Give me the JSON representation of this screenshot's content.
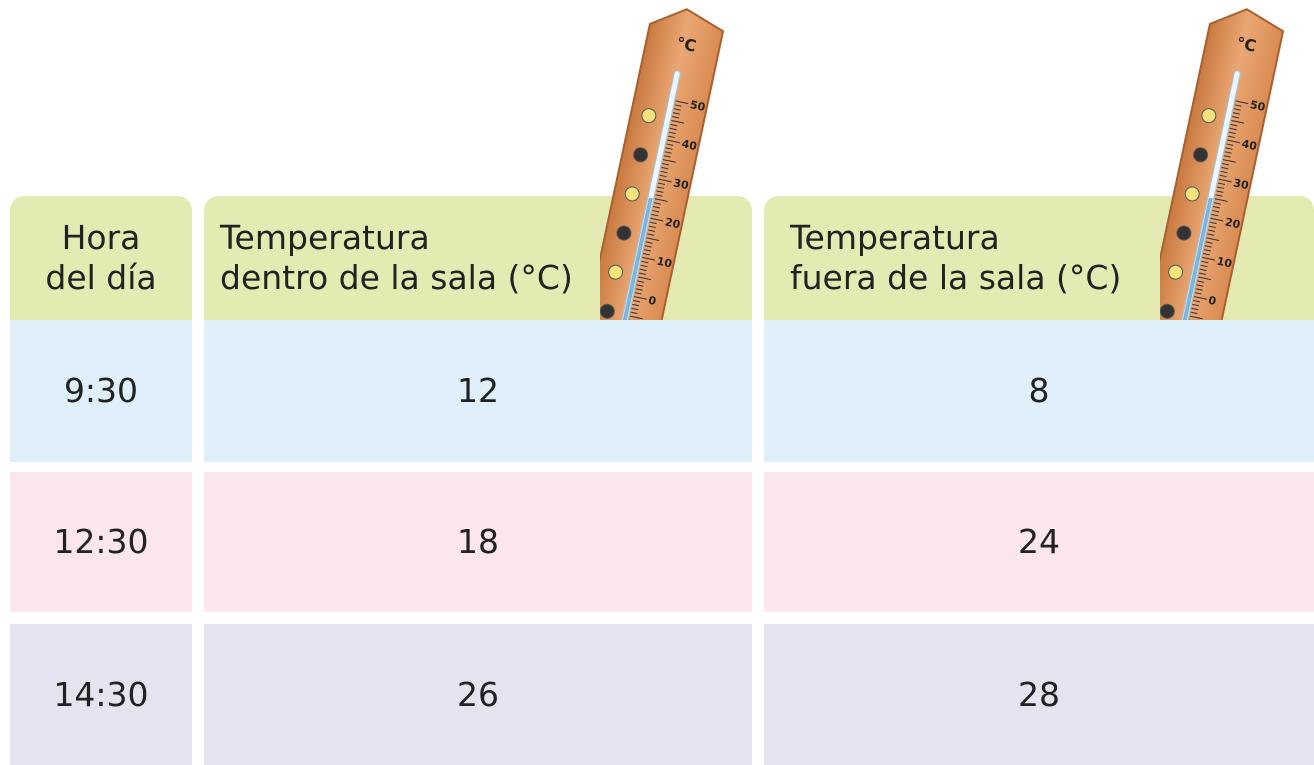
{
  "table": {
    "header": [
      [
        "Hora",
        "del día"
      ],
      [
        "Temperatura",
        "dentro de la sala (°C)"
      ],
      [
        "Temperatura",
        "fuera de la sala (°C)"
      ]
    ],
    "rows": [
      [
        "9:30",
        12,
        8
      ],
      [
        "12:30",
        18,
        24
      ],
      [
        "14:30",
        26,
        28
      ]
    ]
  },
  "thermometer": {
    "unit": "°C",
    "scale": [
      "50",
      "40",
      "30",
      "20",
      "10",
      "0"
    ]
  }
}
